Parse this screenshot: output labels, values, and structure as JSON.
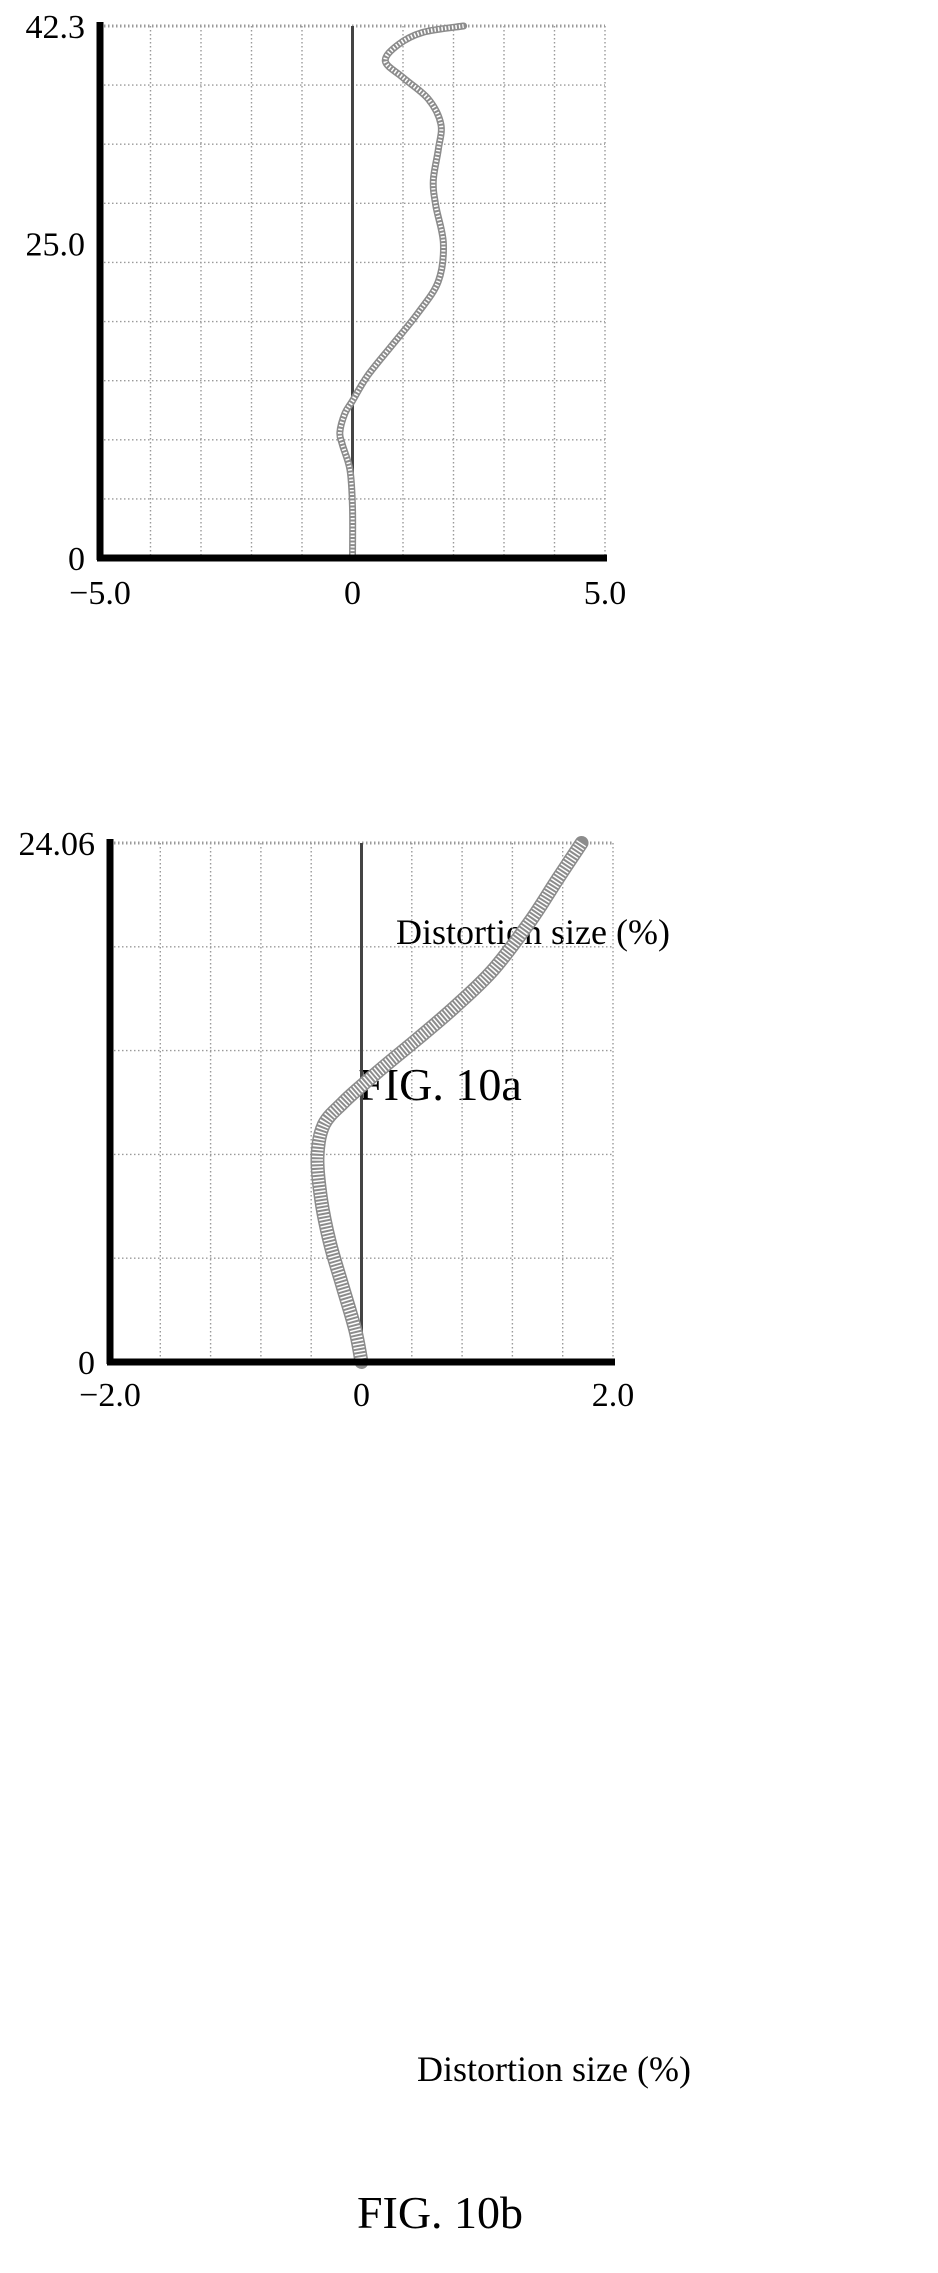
{
  "chart_data": [
    {
      "type": "line",
      "caption": "FIG. 10a",
      "xlabel": "Distortion size (%)",
      "ylabel": "",
      "xlim": [
        -5.0,
        5.0
      ],
      "ylim": [
        0,
        42.3
      ],
      "x_tick_labels": [
        "−5.0",
        "0",
        "5.0"
      ],
      "x_tick_values": [
        -5.0,
        0,
        5.0
      ],
      "y_tick_labels": [
        "0",
        "25.0",
        "42.3"
      ],
      "y_tick_values": [
        0,
        25.0,
        42.3
      ],
      "grid": true,
      "series": [
        {
          "x": [
            0.0,
            0.0,
            -0.05,
            -0.2,
            -0.25,
            -0.15,
            0.0,
            0.3,
            0.8,
            1.3,
            1.7,
            1.8,
            1.65,
            1.6,
            1.7,
            1.75,
            1.5,
            1.0,
            0.65,
            0.9,
            1.4,
            2.2
          ],
          "y": [
            0,
            4,
            7,
            9,
            10,
            11.5,
            12.5,
            14.5,
            17,
            19.5,
            22,
            25,
            28,
            30,
            32.5,
            34.5,
            36.5,
            38.2,
            39.5,
            40.8,
            41.8,
            42.3
          ]
        }
      ]
    },
    {
      "type": "line",
      "caption": "FIG. 10b",
      "xlabel": "Distortion size (%)",
      "ylabel": "",
      "xlim": [
        -2.0,
        2.0
      ],
      "ylim": [
        0,
        24.06
      ],
      "x_tick_labels": [
        "−2.0",
        "0",
        "2.0"
      ],
      "x_tick_values": [
        -2.0,
        0,
        2.0
      ],
      "y_tick_labels": [
        "0",
        "24.06"
      ],
      "y_tick_values": [
        0,
        24.06
      ],
      "grid": true,
      "series": [
        {
          "x": [
            0.0,
            -0.05,
            -0.15,
            -0.25,
            -0.32,
            -0.35,
            -0.3,
            -0.15,
            0.0,
            0.2,
            0.45,
            0.75,
            1.05,
            1.35,
            1.55,
            1.75
          ],
          "y": [
            0,
            1.5,
            3.5,
            5.5,
            7.5,
            9.5,
            11.0,
            12.0,
            12.8,
            13.8,
            15.0,
            16.5,
            18.2,
            20.5,
            22.3,
            24.06
          ]
        }
      ]
    }
  ]
}
